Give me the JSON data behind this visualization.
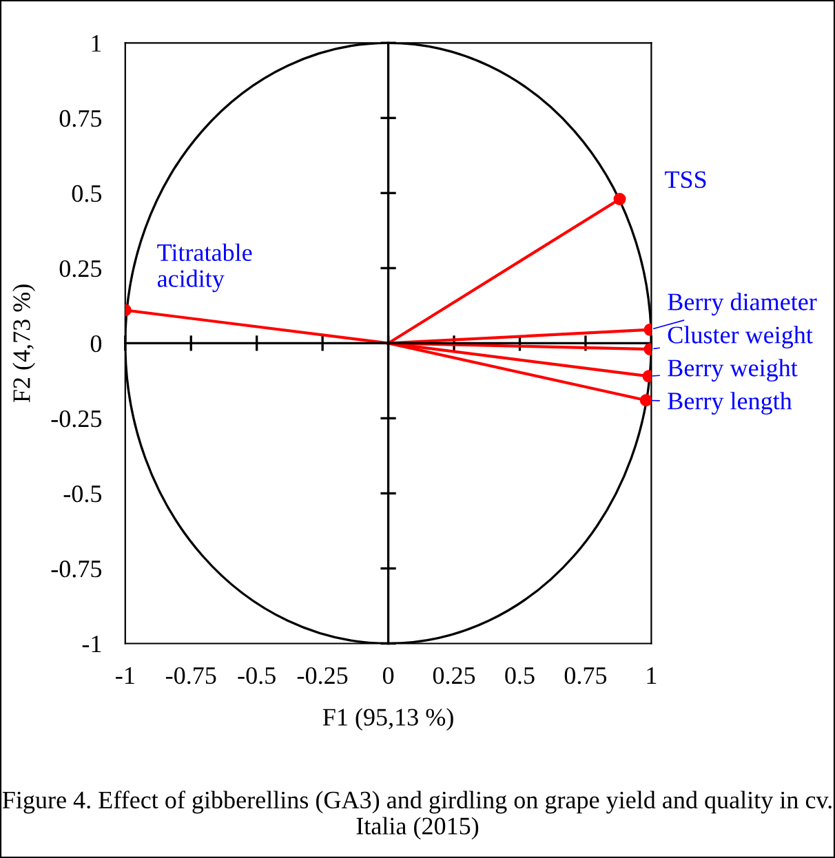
{
  "chart_data": {
    "type": "line",
    "xlabel": "F1 (95,13 %)",
    "ylabel": "F2 (4,73 %)",
    "xlim": [
      -1,
      1
    ],
    "ylim": [
      -1,
      1
    ],
    "xticks": [
      -1,
      -0.75,
      -0.5,
      -0.25,
      0,
      0.25,
      0.5,
      0.75,
      1
    ],
    "yticks": [
      -1,
      -0.75,
      -0.5,
      -0.25,
      0,
      0.25,
      0.5,
      0.75,
      1
    ],
    "legend": false,
    "line_style": "solid",
    "series": [
      {
        "color": "#ff0000",
        "x": [
          0,
          0.88
        ],
        "values": [
          0,
          0.48
        ]
      },
      {
        "color": "#ff0000",
        "x": [
          0,
          -1.0
        ],
        "values": [
          0,
          0.11
        ]
      },
      {
        "color": "#ff0000",
        "x": [
          0,
          0.995
        ],
        "values": [
          0,
          0.045
        ]
      },
      {
        "color": "#ff0000",
        "x": [
          0,
          0.995
        ],
        "values": [
          0,
          -0.02
        ]
      },
      {
        "color": "#ff0000",
        "x": [
          0,
          0.99
        ],
        "values": [
          0,
          -0.11
        ]
      },
      {
        "color": "#ff0000",
        "x": [
          0,
          0.98
        ],
        "values": [
          0,
          -0.19
        ]
      },
      {
        "type": "scatter",
        "color": "#ff0000",
        "marker": "circle",
        "x": [
          0.88,
          -1.0,
          0.995,
          0.995,
          0.99,
          0.98
        ],
        "values": [
          0.48,
          0.11,
          0.045,
          -0.02,
          -0.11,
          -0.19
        ]
      }
    ],
    "annotations": [
      {
        "text": "TSS",
        "x": 0.88,
        "y": 0.48
      },
      {
        "text": "Titratable\nacidity",
        "x": -1.0,
        "y": 0.11
      },
      {
        "text": "Berry diameter",
        "x": 0.995,
        "y": 0.045
      },
      {
        "text": "Cluster weight",
        "x": 0.995,
        "y": -0.02
      },
      {
        "text": "Berry weight",
        "x": 0.99,
        "y": -0.11
      },
      {
        "text": "Berry length",
        "x": 0.98,
        "y": -0.19
      },
      "Figure 4. Effect of gibberellins (GA3) and girdling on grape yield and quality in cv. Italia (2015)"
    ]
  }
}
